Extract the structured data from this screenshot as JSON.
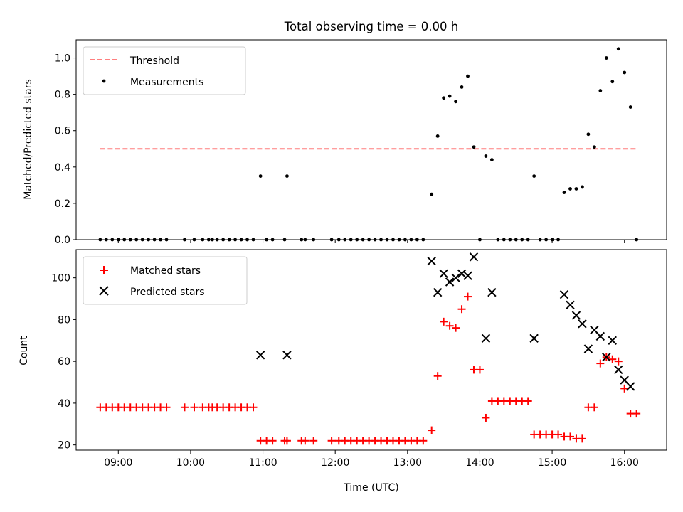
{
  "chart_data": [
    {
      "type": "scatter",
      "title": "Total observing time = 0.00 h",
      "xlabel": "",
      "ylabel": "Matched/Predicted stars",
      "xlim": [
        "08:25",
        "16:35"
      ],
      "ylim": [
        0,
        1.1
      ],
      "yticks": [
        "0.0",
        "0.2",
        "0.4",
        "0.6",
        "0.8",
        "1.0"
      ],
      "legend_position": "upper-left",
      "threshold": {
        "name": "Threshold",
        "value": 0.5,
        "x_start": "08:45",
        "x_end": "16:10",
        "color": "#ff7f7f"
      },
      "series": [
        {
          "name": "Measurements",
          "color": "#000000",
          "points": [
            [
              "08:45",
              0
            ],
            [
              "08:50",
              0
            ],
            [
              "08:55",
              0
            ],
            [
              "09:00",
              0
            ],
            [
              "09:05",
              0
            ],
            [
              "09:10",
              0
            ],
            [
              "09:15",
              0
            ],
            [
              "09:20",
              0
            ],
            [
              "09:25",
              0
            ],
            [
              "09:30",
              0
            ],
            [
              "09:35",
              0
            ],
            [
              "09:40",
              0
            ],
            [
              "09:55",
              0
            ],
            [
              "10:03",
              0
            ],
            [
              "10:10",
              0
            ],
            [
              "10:15",
              0
            ],
            [
              "10:18",
              0
            ],
            [
              "10:22",
              0
            ],
            [
              "10:27",
              0
            ],
            [
              "10:32",
              0
            ],
            [
              "10:37",
              0
            ],
            [
              "10:42",
              0
            ],
            [
              "10:47",
              0
            ],
            [
              "10:52",
              0
            ],
            [
              "10:58",
              0.35
            ],
            [
              "11:03",
              0
            ],
            [
              "11:08",
              0
            ],
            [
              "11:18",
              0
            ],
            [
              "11:20",
              0.35
            ],
            [
              "11:32",
              0
            ],
            [
              "11:35",
              0
            ],
            [
              "11:42",
              0
            ],
            [
              "11:57",
              0
            ],
            [
              "12:03",
              0
            ],
            [
              "12:08",
              0
            ],
            [
              "12:13",
              0
            ],
            [
              "12:18",
              0
            ],
            [
              "12:23",
              0
            ],
            [
              "12:28",
              0
            ],
            [
              "12:33",
              0
            ],
            [
              "12:38",
              0
            ],
            [
              "12:43",
              0
            ],
            [
              "12:48",
              0
            ],
            [
              "12:53",
              0
            ],
            [
              "12:58",
              0
            ],
            [
              "13:03",
              0
            ],
            [
              "13:08",
              0
            ],
            [
              "13:13",
              0
            ],
            [
              "13:20",
              0.25
            ],
            [
              "13:25",
              0.57
            ],
            [
              "13:30",
              0.78
            ],
            [
              "13:35",
              0.79
            ],
            [
              "13:40",
              0.76
            ],
            [
              "13:45",
              0.84
            ],
            [
              "13:50",
              0.9
            ],
            [
              "13:55",
              0.51
            ],
            [
              "14:00",
              0
            ],
            [
              "14:05",
              0.46
            ],
            [
              "14:10",
              0.44
            ],
            [
              "14:15",
              0
            ],
            [
              "14:20",
              0
            ],
            [
              "14:25",
              0
            ],
            [
              "14:30",
              0
            ],
            [
              "14:35",
              0
            ],
            [
              "14:40",
              0
            ],
            [
              "14:45",
              0.35
            ],
            [
              "14:50",
              0
            ],
            [
              "14:55",
              0
            ],
            [
              "15:00",
              0
            ],
            [
              "15:05",
              0
            ],
            [
              "15:10",
              0.26
            ],
            [
              "15:15",
              0.28
            ],
            [
              "15:20",
              0.28
            ],
            [
              "15:25",
              0.29
            ],
            [
              "15:30",
              0.58
            ],
            [
              "15:35",
              0.51
            ],
            [
              "15:40",
              0.82
            ],
            [
              "15:45",
              1.0
            ],
            [
              "15:50",
              0.87
            ],
            [
              "15:55",
              1.05
            ],
            [
              "16:00",
              0.92
            ],
            [
              "16:05",
              0.73
            ],
            [
              "16:10",
              0
            ]
          ]
        }
      ]
    },
    {
      "type": "scatter",
      "title": "",
      "xlabel": "Time (UTC)",
      "ylabel": "Count",
      "xlim": [
        "08:25",
        "16:35"
      ],
      "ylim": [
        17.5,
        113.5
      ],
      "yticks": [
        "20",
        "40",
        "60",
        "80",
        "100"
      ],
      "xticks": [
        "09:00",
        "10:00",
        "11:00",
        "12:00",
        "13:00",
        "14:00",
        "15:00",
        "16:00"
      ],
      "legend_position": "upper-left",
      "series": [
        {
          "name": "Matched stars",
          "marker": "plus",
          "color": "#ff0000",
          "points": [
            [
              "08:45",
              38
            ],
            [
              "08:50",
              38
            ],
            [
              "08:55",
              38
            ],
            [
              "09:00",
              38
            ],
            [
              "09:05",
              38
            ],
            [
              "09:10",
              38
            ],
            [
              "09:15",
              38
            ],
            [
              "09:20",
              38
            ],
            [
              "09:25",
              38
            ],
            [
              "09:30",
              38
            ],
            [
              "09:35",
              38
            ],
            [
              "09:40",
              38
            ],
            [
              "09:55",
              38
            ],
            [
              "10:03",
              38
            ],
            [
              "10:10",
              38
            ],
            [
              "10:15",
              38
            ],
            [
              "10:18",
              38
            ],
            [
              "10:22",
              38
            ],
            [
              "10:27",
              38
            ],
            [
              "10:32",
              38
            ],
            [
              "10:37",
              38
            ],
            [
              "10:42",
              38
            ],
            [
              "10:47",
              38
            ],
            [
              "10:52",
              38
            ],
            [
              "10:58",
              22
            ],
            [
              "11:03",
              22
            ],
            [
              "11:08",
              22
            ],
            [
              "11:18",
              22
            ],
            [
              "11:20",
              22
            ],
            [
              "11:32",
              22
            ],
            [
              "11:35",
              22
            ],
            [
              "11:42",
              22
            ],
            [
              "11:57",
              22
            ],
            [
              "12:03",
              22
            ],
            [
              "12:08",
              22
            ],
            [
              "12:13",
              22
            ],
            [
              "12:18",
              22
            ],
            [
              "12:23",
              22
            ],
            [
              "12:28",
              22
            ],
            [
              "12:33",
              22
            ],
            [
              "12:38",
              22
            ],
            [
              "12:43",
              22
            ],
            [
              "12:48",
              22
            ],
            [
              "12:53",
              22
            ],
            [
              "12:58",
              22
            ],
            [
              "13:03",
              22
            ],
            [
              "13:08",
              22
            ],
            [
              "13:13",
              22
            ],
            [
              "13:20",
              27
            ],
            [
              "13:25",
              53
            ],
            [
              "13:30",
              79
            ],
            [
              "13:35",
              77
            ],
            [
              "13:40",
              76
            ],
            [
              "13:45",
              85
            ],
            [
              "13:50",
              91
            ],
            [
              "13:55",
              56
            ],
            [
              "14:00",
              56
            ],
            [
              "14:05",
              33
            ],
            [
              "14:10",
              41
            ],
            [
              "14:15",
              41
            ],
            [
              "14:20",
              41
            ],
            [
              "14:25",
              41
            ],
            [
              "14:30",
              41
            ],
            [
              "14:35",
              41
            ],
            [
              "14:40",
              41
            ],
            [
              "14:45",
              25
            ],
            [
              "14:50",
              25
            ],
            [
              "14:55",
              25
            ],
            [
              "15:00",
              25
            ],
            [
              "15:05",
              25
            ],
            [
              "15:10",
              24
            ],
            [
              "15:15",
              24
            ],
            [
              "15:20",
              23
            ],
            [
              "15:25",
              23
            ],
            [
              "15:30",
              38
            ],
            [
              "15:35",
              38
            ],
            [
              "15:40",
              59
            ],
            [
              "15:45",
              62
            ],
            [
              "15:50",
              61
            ],
            [
              "15:55",
              60
            ],
            [
              "16:00",
              47
            ],
            [
              "16:05",
              35
            ],
            [
              "16:10",
              35
            ]
          ]
        },
        {
          "name": "Predicted stars",
          "marker": "x",
          "color": "#000000",
          "points": [
            [
              "10:58",
              63
            ],
            [
              "11:20",
              63
            ],
            [
              "13:20",
              108
            ],
            [
              "13:25",
              93
            ],
            [
              "13:30",
              102
            ],
            [
              "13:35",
              98
            ],
            [
              "13:40",
              100
            ],
            [
              "13:45",
              102
            ],
            [
              "13:50",
              101
            ],
            [
              "13:55",
              110
            ],
            [
              "14:05",
              71
            ],
            [
              "14:10",
              93
            ],
            [
              "14:45",
              71
            ],
            [
              "15:10",
              92
            ],
            [
              "15:15",
              87
            ],
            [
              "15:20",
              82
            ],
            [
              "15:25",
              78
            ],
            [
              "15:30",
              66
            ],
            [
              "15:35",
              75
            ],
            [
              "15:40",
              72
            ],
            [
              "15:45",
              62
            ],
            [
              "15:50",
              70
            ],
            [
              "15:55",
              56
            ],
            [
              "16:00",
              51
            ],
            [
              "16:05",
              48
            ]
          ]
        }
      ]
    }
  ]
}
